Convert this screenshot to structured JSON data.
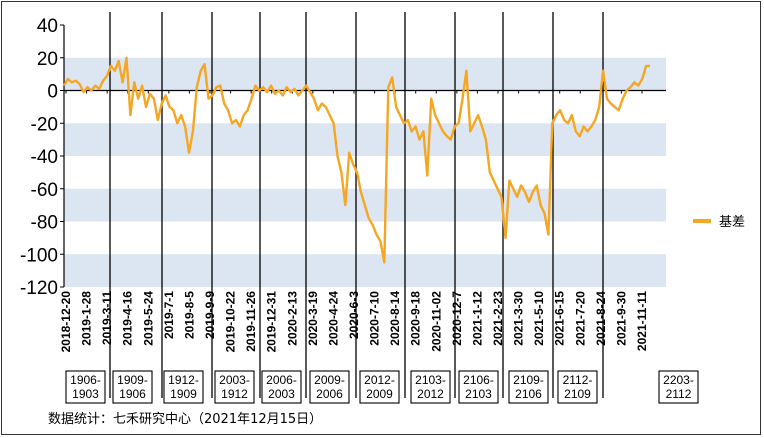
{
  "chart_data": {
    "type": "line",
    "legend": {
      "label": "基差",
      "placement": "right"
    },
    "series": [
      {
        "name": "基差",
        "color": "#F5A623"
      }
    ],
    "ylim": [
      -120,
      40
    ],
    "yticks": [
      40,
      20,
      0,
      -20,
      -40,
      -60,
      -80,
      -100,
      -120
    ],
    "bands": [
      [
        0,
        20
      ],
      [
        -20,
        -40
      ],
      [
        -60,
        -80
      ],
      [
        -100,
        -120
      ]
    ],
    "band_color": "#DCE6F2",
    "x_tick_labels": [
      "2018-12-20",
      "2019-1-28",
      "2019-3-11",
      "2019-4-16",
      "2019-5-24",
      "2019-7-1",
      "2019-8-5",
      "2019-9-9",
      "2019-10-22",
      "2019-11-26",
      "2019-12-31",
      "2020-2-13",
      "2020-3-19",
      "2020-4-24",
      "2020-6-3",
      "2020-7-10",
      "2020-8-14",
      "2020-9-18",
      "2020-11-02",
      "2020-12-7",
      "2021-1-12",
      "2021-2-23",
      "2021-3-30",
      "2021-5-10",
      "2021-6-15",
      "2021-7-20",
      "2021-8-24",
      "2021-9-30",
      "2021-11-11"
    ],
    "contracts": [
      {
        "label": "1906-\n1903"
      },
      {
        "label": "1909-\n1906"
      },
      {
        "label": "1912-\n1909"
      },
      {
        "label": "2003-\n1912"
      },
      {
        "label": "2006-\n2003"
      },
      {
        "label": "2009-\n2006"
      },
      {
        "label": "2012-\n2009"
      },
      {
        "label": "2103-\n2012"
      },
      {
        "label": "2106-\n2103"
      },
      {
        "label": "2109-\n2106"
      },
      {
        "label": "2112-\n2109"
      },
      {
        "label": "2203-\n2112"
      }
    ],
    "values": [
      3,
      7,
      5,
      6,
      4,
      -1,
      2,
      0,
      3,
      1,
      6,
      9,
      15,
      12,
      18,
      5,
      20,
      -15,
      5,
      -5,
      3,
      -10,
      -2,
      -5,
      -18,
      -8,
      -3,
      -10,
      -12,
      -20,
      -15,
      -22,
      -38,
      -25,
      2,
      12,
      16,
      -5,
      -3,
      2,
      3,
      -8,
      -12,
      -20,
      -18,
      -22,
      -15,
      -12,
      -5,
      3,
      0,
      2,
      -1,
      3,
      -2,
      0,
      -3,
      2,
      -1,
      1,
      -3,
      0,
      3,
      -1,
      -5,
      -12,
      -8,
      -10,
      -15,
      -20,
      -40,
      -50,
      -70,
      -38,
      -45,
      -50,
      -62,
      -70,
      -78,
      -82,
      -88,
      -92,
      -105,
      2,
      8,
      -10,
      -15,
      -20,
      -18,
      -25,
      -22,
      -30,
      -25,
      -52,
      -5,
      -15,
      -20,
      -25,
      -28,
      -30,
      -22,
      -20,
      -5,
      12,
      -25,
      -20,
      -15,
      -22,
      -30,
      -50,
      -55,
      -60,
      -65,
      -90,
      -55,
      -60,
      -65,
      -58,
      -62,
      -68,
      -62,
      -58,
      -70,
      -75,
      -88,
      -20,
      -15,
      -12,
      -18,
      -20,
      -15,
      -25,
      -28,
      -22,
      -25,
      -22,
      -18,
      -10,
      12,
      -5,
      -8,
      -10,
      -12,
      -5,
      0,
      2,
      5,
      3,
      7,
      15,
      15
    ]
  },
  "source": "数据统计：七禾研究中心（2021年12月15日）"
}
